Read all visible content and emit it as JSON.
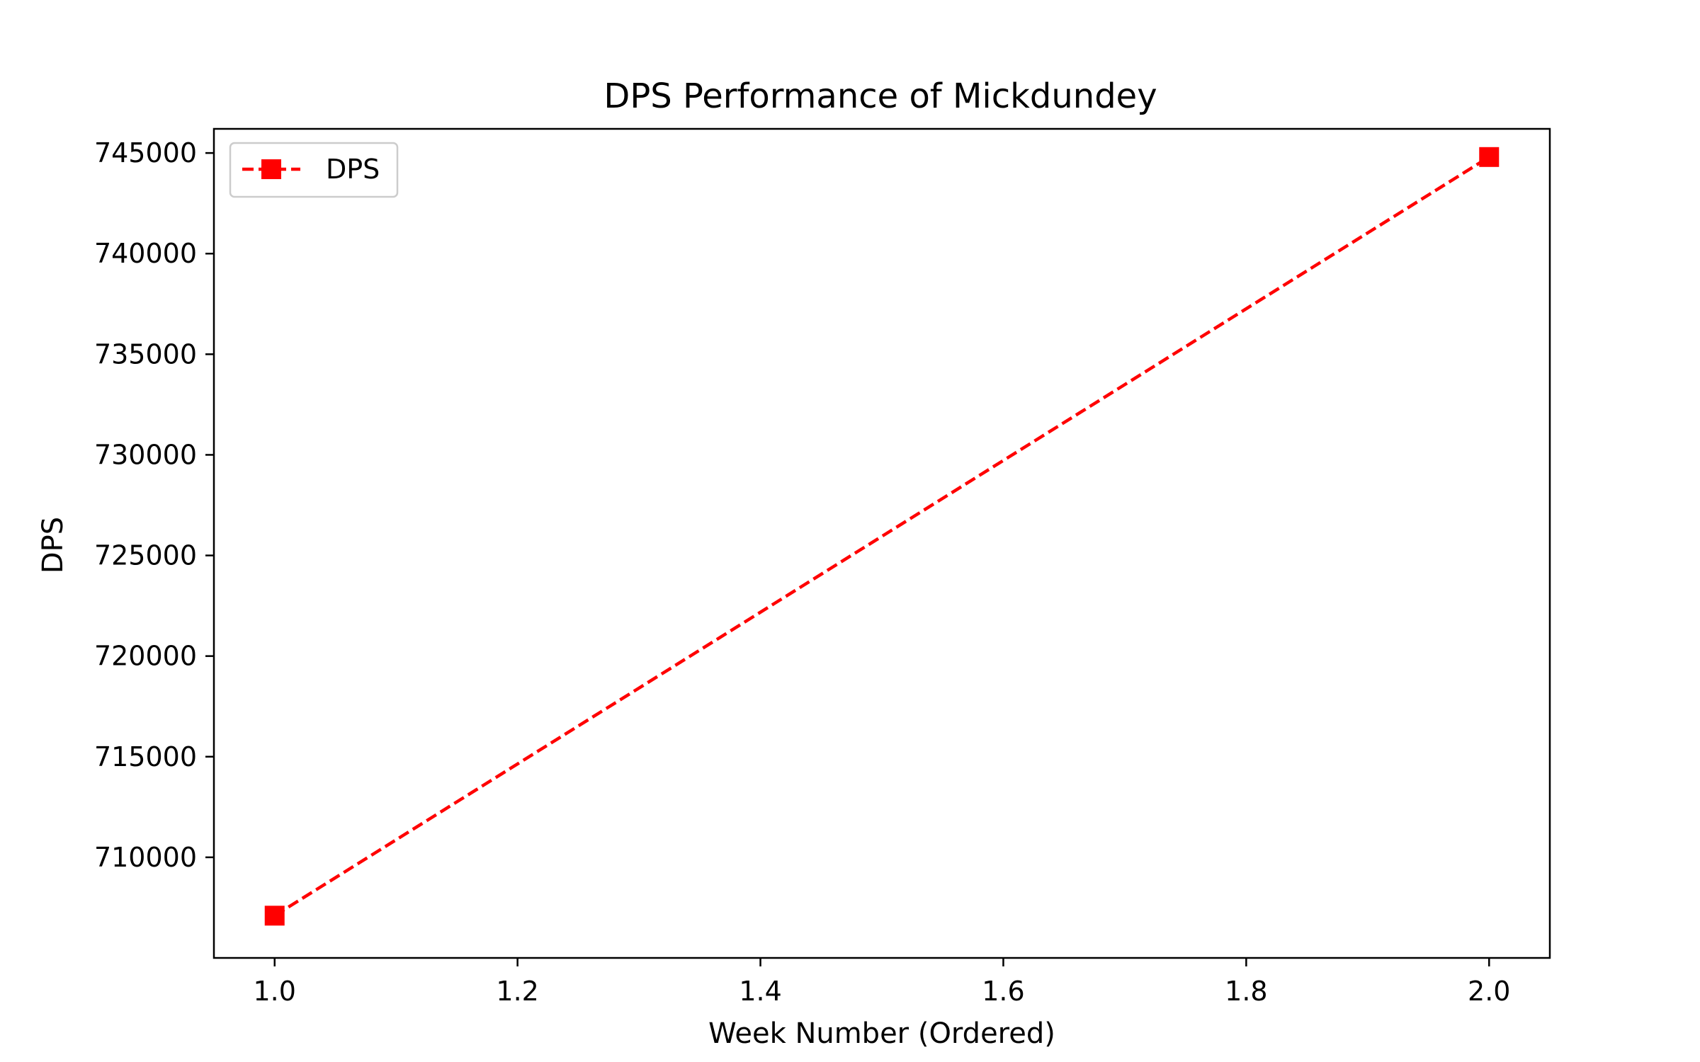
{
  "chart_data": {
    "type": "line",
    "title": "DPS Performance of Mickdundey",
    "xlabel": "Week Number (Ordered)",
    "ylabel": "DPS",
    "xlim": [
      0.95,
      2.05
    ],
    "ylim": [
      705000,
      746200
    ],
    "xticks": [
      1.0,
      1.2,
      1.4,
      1.6,
      1.8,
      2.0
    ],
    "xtick_labels": [
      "1.0",
      "1.2",
      "1.4",
      "1.6",
      "1.8",
      "2.0"
    ],
    "yticks": [
      710000,
      715000,
      720000,
      725000,
      730000,
      735000,
      740000,
      745000
    ],
    "ytick_labels": [
      "710000",
      "715000",
      "720000",
      "725000",
      "730000",
      "735000",
      "740000",
      "745000"
    ],
    "grid": false,
    "legend_position": "top-left",
    "series": [
      {
        "name": "DPS",
        "x": [
          1.0,
          2.0
        ],
        "y": [
          707100,
          744800
        ],
        "color": "#ff0000",
        "linestyle": "dashed",
        "marker": "square"
      }
    ]
  }
}
